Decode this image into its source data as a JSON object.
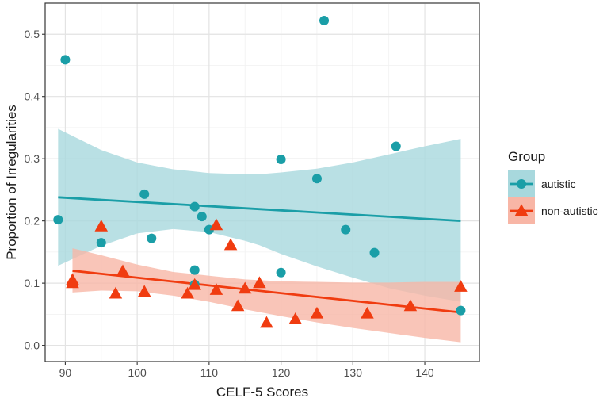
{
  "chart_data": {
    "type": "scatter",
    "title": "",
    "xlabel": "CELF-5 Scores",
    "ylabel": "Proportion of Irregularities",
    "xlim": [
      87.2,
      147.6
    ],
    "ylim": [
      -0.026,
      0.55
    ],
    "x_ticks": [
      90,
      100,
      110,
      120,
      130,
      140
    ],
    "x_tick_labels": [
      "90",
      "100",
      "110",
      "120",
      "130",
      "140"
    ],
    "y_ticks": [
      0.0,
      0.1,
      0.2,
      0.3,
      0.4,
      0.5
    ],
    "y_tick_labels": [
      "0.0",
      "0.1",
      "0.2",
      "0.3",
      "0.4",
      "0.5"
    ],
    "legend": {
      "title": "Group",
      "position": "right",
      "entries": [
        "autistic",
        "non-autistic"
      ]
    },
    "series": [
      {
        "name": "autistic",
        "marker": "circle",
        "color": "#1a9ea7",
        "band_color": "#a8d8dd",
        "points": [
          {
            "x": 89,
            "y": 0.202
          },
          {
            "x": 90,
            "y": 0.459
          },
          {
            "x": 95,
            "y": 0.165
          },
          {
            "x": 101,
            "y": 0.243
          },
          {
            "x": 102,
            "y": 0.172
          },
          {
            "x": 108,
            "y": 0.223
          },
          {
            "x": 108,
            "y": 0.121
          },
          {
            "x": 108,
            "y": 0.098
          },
          {
            "x": 109,
            "y": 0.207
          },
          {
            "x": 110,
            "y": 0.186
          },
          {
            "x": 120,
            "y": 0.299
          },
          {
            "x": 120,
            "y": 0.117
          },
          {
            "x": 125,
            "y": 0.268
          },
          {
            "x": 126,
            "y": 0.522
          },
          {
            "x": 129,
            "y": 0.186
          },
          {
            "x": 133,
            "y": 0.149
          },
          {
            "x": 136,
            "y": 0.32
          },
          {
            "x": 145,
            "y": 0.056
          }
        ],
        "fit": {
          "x": [
            89,
            145
          ],
          "y": [
            0.238,
            0.2
          ]
        },
        "ci_band": {
          "x": [
            89,
            95,
            100,
            105,
            110,
            115,
            117,
            120,
            125,
            130,
            135,
            140,
            145
          ],
          "upper": [
            0.348,
            0.314,
            0.294,
            0.283,
            0.277,
            0.275,
            0.275,
            0.278,
            0.284,
            0.294,
            0.307,
            0.32,
            0.332
          ],
          "lower": [
            0.128,
            0.16,
            0.18,
            0.187,
            0.182,
            0.168,
            0.161,
            0.147,
            0.127,
            0.109,
            0.092,
            0.08,
            0.07
          ]
        }
      },
      {
        "name": "non-autistic",
        "marker": "triangle",
        "color": "#f03c10",
        "band_color": "#f8b6a6",
        "points": [
          {
            "x": 91,
            "y": 0.105
          },
          {
            "x": 91,
            "y": 0.1
          },
          {
            "x": 95,
            "y": 0.191
          },
          {
            "x": 97,
            "y": 0.083
          },
          {
            "x": 98,
            "y": 0.119
          },
          {
            "x": 101,
            "y": 0.086
          },
          {
            "x": 107,
            "y": 0.083
          },
          {
            "x": 108,
            "y": 0.097
          },
          {
            "x": 111,
            "y": 0.193
          },
          {
            "x": 111,
            "y": 0.089
          },
          {
            "x": 113,
            "y": 0.161
          },
          {
            "x": 114,
            "y": 0.063
          },
          {
            "x": 115,
            "y": 0.091
          },
          {
            "x": 117,
            "y": 0.1
          },
          {
            "x": 118,
            "y": 0.036
          },
          {
            "x": 122,
            "y": 0.042
          },
          {
            "x": 125,
            "y": 0.051
          },
          {
            "x": 132,
            "y": 0.051
          },
          {
            "x": 138,
            "y": 0.063
          },
          {
            "x": 145,
            "y": 0.094
          }
        ],
        "fit": {
          "x": [
            91,
            145
          ],
          "y": [
            0.12,
            0.053
          ]
        },
        "ci_band": {
          "x": [
            91,
            95,
            100,
            105,
            110,
            115,
            120,
            125,
            130,
            135,
            140,
            145
          ],
          "upper": [
            0.156,
            0.145,
            0.13,
            0.118,
            0.112,
            0.106,
            0.103,
            0.102,
            0.101,
            0.101,
            0.102,
            0.102
          ],
          "lower": [
            0.085,
            0.088,
            0.087,
            0.08,
            0.07,
            0.058,
            0.047,
            0.037,
            0.028,
            0.02,
            0.012,
            0.005
          ]
        }
      }
    ]
  }
}
